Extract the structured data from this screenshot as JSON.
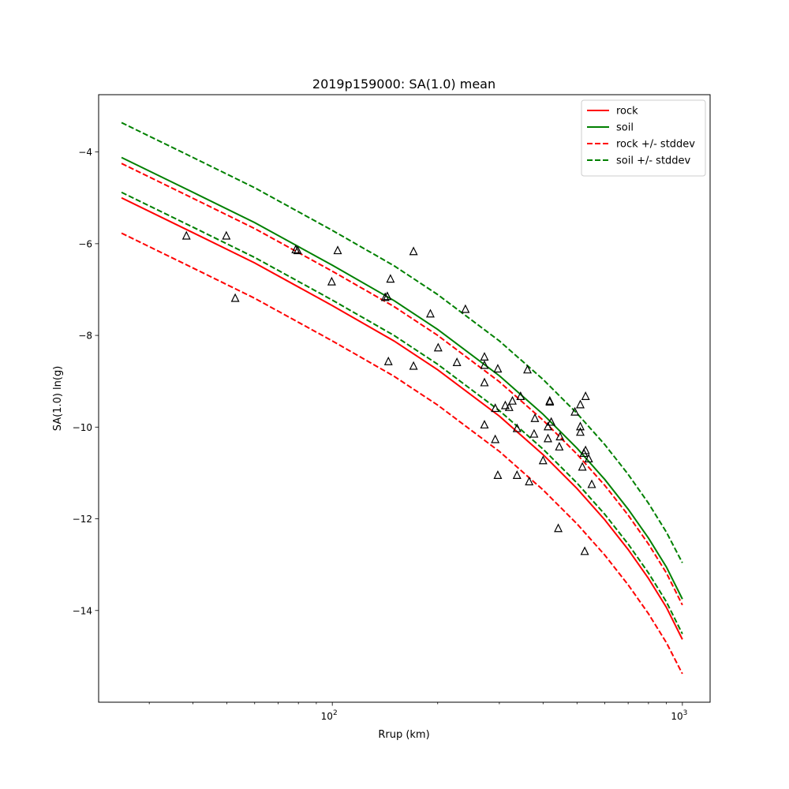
{
  "chart_data": {
    "type": "line",
    "title": "2019p159000: SA(1.0) mean",
    "xlabel": "Rrup (km)",
    "ylabel": "SA(1.0) ln(g)",
    "xscale": "log",
    "xlim": [
      21.5,
      1200
    ],
    "ylim": [
      -16.0,
      -2.75
    ],
    "grid": false,
    "legend_position": "top-right",
    "x_major_ticks": [
      {
        "value": 100,
        "base": "10",
        "exp": "2"
      },
      {
        "value": 1000,
        "base": "10",
        "exp": "3"
      }
    ],
    "x_minor_ticks": [
      30,
      40,
      50,
      60,
      70,
      80,
      90,
      200,
      300,
      400,
      500,
      600,
      700,
      800,
      900
    ],
    "y_ticks": [
      {
        "value": -4,
        "label": "−4"
      },
      {
        "value": -6,
        "label": "−6"
      },
      {
        "value": -8,
        "label": "−8"
      },
      {
        "value": -10,
        "label": "−10"
      },
      {
        "value": -12,
        "label": "−12"
      },
      {
        "value": -14,
        "label": "−14"
      }
    ],
    "x": [
      25,
      40,
      60,
      100,
      150,
      200,
      300,
      400,
      500,
      600,
      700,
      800,
      900,
      1000
    ],
    "series": [
      {
        "name": "rock",
        "color": "#ff0000",
        "style": "solid",
        "values": [
          -5.0,
          -5.76,
          -6.42,
          -7.35,
          -8.12,
          -8.75,
          -9.76,
          -10.6,
          -11.34,
          -12.02,
          -12.67,
          -13.3,
          -13.93,
          -14.63
        ]
      },
      {
        "name": "soil",
        "color": "#008000",
        "style": "solid",
        "values": [
          -4.12,
          -4.88,
          -5.54,
          -6.47,
          -7.24,
          -7.87,
          -8.88,
          -9.72,
          -10.46,
          -11.14,
          -11.79,
          -12.42,
          -13.05,
          -13.75
        ]
      },
      {
        "name": "rock +/- stddev",
        "color": "#ff0000",
        "style": "dashed",
        "values": [
          -4.25,
          -5.01,
          -5.67,
          -6.6,
          -7.37,
          -8.0,
          -9.01,
          -9.85,
          -10.59,
          -11.27,
          -11.92,
          -12.55,
          -13.18,
          -13.88
        ]
      },
      {
        "name": "",
        "color": "#ff0000",
        "style": "dashed",
        "values": [
          -5.77,
          -6.53,
          -7.19,
          -8.12,
          -8.89,
          -9.52,
          -10.53,
          -11.37,
          -12.11,
          -12.79,
          -13.44,
          -14.07,
          -14.7,
          -15.38
        ]
      },
      {
        "name": "soil +/- stddev",
        "color": "#008000",
        "style": "dashed",
        "values": [
          -3.36,
          -4.12,
          -4.78,
          -5.71,
          -6.48,
          -7.11,
          -8.12,
          -8.96,
          -9.7,
          -10.38,
          -11.03,
          -11.66,
          -12.29,
          -12.96
        ]
      },
      {
        "name": "",
        "color": "#008000",
        "style": "dashed",
        "values": [
          -4.88,
          -5.64,
          -6.3,
          -7.23,
          -8.0,
          -8.63,
          -9.64,
          -10.48,
          -11.22,
          -11.9,
          -12.55,
          -13.18,
          -13.81,
          -14.51
        ]
      }
    ],
    "observations": [
      [
        38.3,
        -5.83
      ],
      [
        49.8,
        -5.83
      ],
      [
        52.8,
        -7.19
      ],
      [
        78.6,
        -6.13
      ],
      [
        79.6,
        -6.15
      ],
      [
        99.6,
        -6.83
      ],
      [
        103.6,
        -6.15
      ],
      [
        141.6,
        -7.17
      ],
      [
        143.6,
        -7.15
      ],
      [
        144.6,
        -8.57
      ],
      [
        146.6,
        -6.77
      ],
      [
        170.6,
        -6.17
      ],
      [
        170.6,
        -8.67
      ],
      [
        190.6,
        -7.53
      ],
      [
        200.6,
        -8.27
      ],
      [
        227.0,
        -8.59
      ],
      [
        240.0,
        -7.43
      ],
      [
        272.0,
        -8.47
      ],
      [
        272.0,
        -8.65
      ],
      [
        272.0,
        -9.03
      ],
      [
        272.0,
        -9.95
      ],
      [
        292.0,
        -9.59
      ],
      [
        292.0,
        -10.27
      ],
      [
        297.0,
        -8.73
      ],
      [
        297.0,
        -11.05
      ],
      [
        312.0,
        -9.53
      ],
      [
        320.0,
        -9.57
      ],
      [
        327.0,
        -9.43
      ],
      [
        337.0,
        -10.03
      ],
      [
        337.0,
        -11.05
      ],
      [
        345.0,
        -9.33
      ],
      [
        361.0,
        -8.75
      ],
      [
        365.0,
        -11.19
      ],
      [
        377.0,
        -10.15
      ],
      [
        379.0,
        -9.81
      ],
      [
        400.0,
        -10.73
      ],
      [
        413.0,
        -10.25
      ],
      [
        413.0,
        -9.99
      ],
      [
        418.0,
        -9.45
      ],
      [
        418.0,
        -9.43
      ],
      [
        422.0,
        -9.89
      ],
      [
        442.0,
        -12.21
      ],
      [
        445.0,
        -10.43
      ],
      [
        447.0,
        -10.21
      ],
      [
        493.0,
        -9.67
      ],
      [
        511.0,
        -9.51
      ],
      [
        511.0,
        -9.99
      ],
      [
        511.0,
        -10.11
      ],
      [
        518.0,
        -10.87
      ],
      [
        523.0,
        -10.57
      ],
      [
        526.0,
        -12.71
      ],
      [
        529.0,
        -9.33
      ],
      [
        529.0,
        -10.51
      ],
      [
        540.0,
        -10.69
      ],
      [
        551.0,
        -11.25
      ]
    ]
  }
}
